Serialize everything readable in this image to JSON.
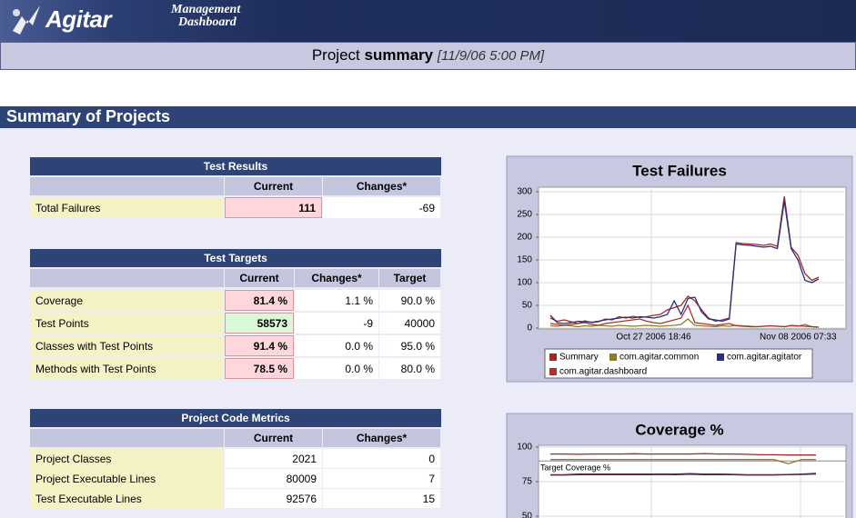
{
  "header": {
    "logo": "Agitar",
    "app_name_line1": "Management",
    "app_name_line2": "Dashboard"
  },
  "summary_bar": {
    "prefix": "Project",
    "emphasis": "summary",
    "timestamp": "[11/9/06 5:00 PM]"
  },
  "section_title": "Summary of Projects",
  "tables": {
    "test_results": {
      "title": "Test Results",
      "columns": [
        "Current",
        "Changes*"
      ],
      "rows": [
        {
          "label": "Total Failures",
          "current": "111",
          "change": "-69",
          "current_color": "#ffd6dc"
        }
      ]
    },
    "test_targets": {
      "title": "Test Targets",
      "columns": [
        "Current",
        "Changes*",
        "Target"
      ],
      "rows": [
        {
          "label": "Coverage",
          "current": "81.4 %",
          "change": "1.1 %",
          "target": "90.0 %",
          "current_color": "#ffd6dc"
        },
        {
          "label": "Test Points",
          "current": "58573",
          "change": "-9",
          "target": "40000",
          "current_color": "#d8f8d8"
        },
        {
          "label": "Classes with Test Points",
          "current": "91.4 %",
          "change": "0.0 %",
          "target": "95.0 %",
          "current_color": "#ffd6dc"
        },
        {
          "label": "Methods with Test Points",
          "current": "78.5 %",
          "change": "0.0 %",
          "target": "80.0 %",
          "current_color": "#ffd6dc"
        }
      ]
    },
    "project_code_metrics": {
      "title": "Project Code Metrics",
      "columns": [
        "Current",
        "Changes*"
      ],
      "rows": [
        {
          "label": "Project Classes",
          "current": "2021",
          "change": "0",
          "current_color": "#ffffff"
        },
        {
          "label": "Project Executable Lines",
          "current": "80009",
          "change": "7",
          "current_color": "#ffffff"
        },
        {
          "label": "Test Executable Lines",
          "current": "92576",
          "change": "15",
          "current_color": "#ffffff"
        }
      ]
    }
  },
  "chart_data": [
    {
      "type": "line",
      "title": "Test Failures",
      "categories": [
        null,
        null,
        null,
        null,
        null,
        null,
        null,
        null,
        null,
        null,
        null,
        null,
        null,
        null,
        null,
        "Oct 27 2006 18:46",
        null,
        null,
        null,
        null,
        null,
        null,
        null,
        null,
        null,
        null,
        null,
        null,
        null,
        null,
        null,
        null,
        null,
        null,
        null,
        null,
        "Nov 08 2006 07:33",
        null,
        null,
        null
      ],
      "ylim": [
        0,
        300
      ],
      "yticks": [
        0,
        50,
        100,
        150,
        200,
        250,
        300
      ],
      "grid": true,
      "series": [
        {
          "name": "Summary",
          "color": "#9c2a2a",
          "values": [
            22,
            15,
            18,
            14,
            10,
            16,
            12,
            14,
            20,
            18,
            25,
            22,
            26,
            23,
            25,
            28,
            30,
            40,
            45,
            50,
            70,
            60,
            40,
            22,
            15,
            18,
            22,
            188,
            186,
            185,
            184,
            182,
            185,
            180,
            290,
            178,
            160,
            120,
            105,
            112
          ]
        },
        {
          "name": "com.agitar.common",
          "color": "#8c7a2e",
          "values": [
            5,
            4,
            6,
            5,
            3,
            5,
            4,
            6,
            5,
            4,
            6,
            5,
            4,
            5,
            6,
            5,
            4,
            5,
            6,
            8,
            20,
            6,
            5,
            4,
            3,
            5,
            4,
            6,
            5,
            4,
            3,
            4,
            5,
            4,
            3,
            5,
            4,
            8,
            3,
            2
          ]
        },
        {
          "name": "com.agitar.agitator",
          "color": "#2a2f78",
          "values": [
            28,
            12,
            10,
            12,
            15,
            14,
            13,
            15,
            18,
            20,
            22,
            24,
            22,
            25,
            24,
            22,
            25,
            30,
            60,
            30,
            65,
            68,
            35,
            20,
            18,
            15,
            20,
            185,
            183,
            182,
            180,
            178,
            180,
            175,
            280,
            175,
            150,
            105,
            100,
            108
          ]
        },
        {
          "name": "com.agitar.dashboard",
          "color": "#a83232",
          "values": [
            10,
            8,
            6,
            8,
            10,
            12,
            8,
            6,
            10,
            12,
            14,
            16,
            18,
            20,
            15,
            12,
            10,
            14,
            18,
            22,
            50,
            12,
            10,
            8,
            6,
            8,
            10,
            5,
            4,
            3,
            3,
            4,
            5,
            4,
            3,
            6,
            5,
            4,
            3,
            2
          ]
        }
      ]
    },
    {
      "type": "line",
      "title": "Coverage %",
      "categories": [
        null,
        null,
        null,
        null,
        null,
        null,
        null,
        null,
        null,
        null,
        null,
        null,
        null,
        null,
        null,
        null,
        null,
        null,
        null,
        null
      ],
      "ylim": [
        50,
        100
      ],
      "yticks": [
        50,
        75,
        100
      ],
      "grid": true,
      "target_value": 90,
      "target_label": "Target Coverage %",
      "series": [
        {
          "color": "#9c2a2a",
          "values": [
            95,
            95,
            94.8,
            95,
            95,
            95,
            95.2,
            95,
            95,
            95,
            95,
            95.3,
            95,
            95,
            94.8,
            94.5,
            94.5,
            94.3,
            94.3,
            94.3
          ]
        },
        {
          "color": "#8c7a2e",
          "values": [
            91,
            91,
            91,
            91,
            91,
            91,
            91,
            91,
            91,
            91,
            91,
            91,
            91,
            91,
            91,
            91,
            91,
            88,
            91,
            91
          ]
        },
        {
          "color": "#2a2f78",
          "values": [
            80,
            80,
            80.5,
            80.5,
            80.5,
            80.5,
            80.5,
            80.5,
            80.5,
            80.5,
            80.8,
            80.5,
            80.5,
            80.3,
            80,
            80,
            80,
            80.2,
            80.5,
            81
          ]
        },
        {
          "color": "#5a2a3a",
          "values": [
            79.8,
            79.8,
            80,
            80,
            80,
            80,
            80,
            80,
            80.2,
            80,
            80.3,
            80,
            80,
            80,
            79.8,
            79.8,
            79.8,
            80,
            80.2,
            80.5
          ]
        }
      ]
    }
  ]
}
